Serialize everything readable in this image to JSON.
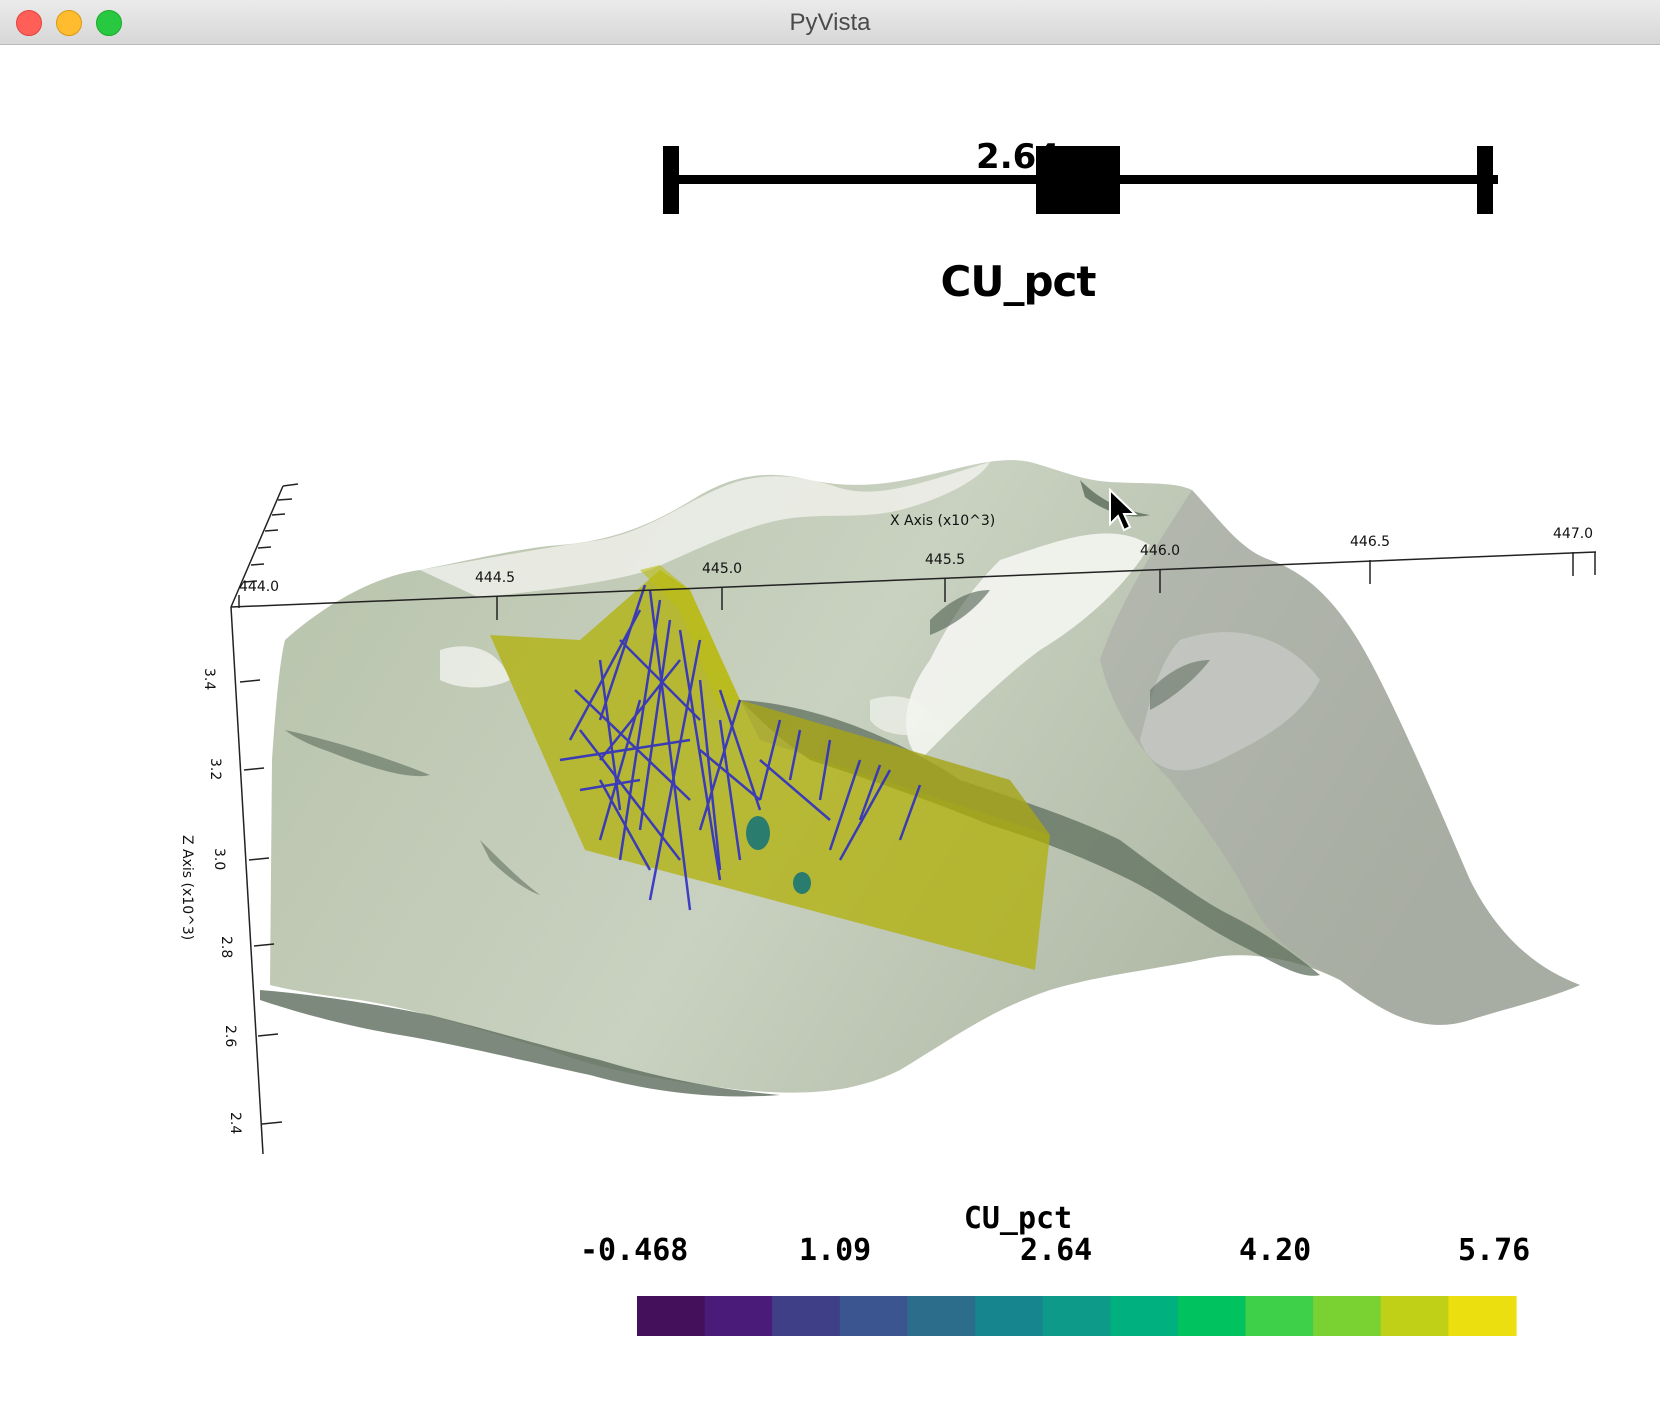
{
  "window": {
    "title": "PyVista"
  },
  "slider": {
    "value": "2.64",
    "title": "CU_pct",
    "value_fraction": 0.5
  },
  "x_axis": {
    "title": "X Axis (x10^3)",
    "ticks": [
      "444.0",
      "444.5",
      "445.0",
      "445.5",
      "446.0",
      "446.5",
      "447.0"
    ]
  },
  "z_axis": {
    "title": "Z Axis (x10^3)",
    "ticks": [
      "3.4",
      "3.2",
      "3.0",
      "2.8",
      "2.6",
      "2.4"
    ]
  },
  "colorbar": {
    "title": "CU_pct",
    "labels": [
      "-0.468",
      "1.09",
      "2.64",
      "4.20",
      "5.76"
    ],
    "colors": [
      "#44105c",
      "#4a1b78",
      "#3f3f88",
      "#3b5590",
      "#2c6d8c",
      "#17858e",
      "#0e9a89",
      "#00b07e",
      "#00c25f",
      "#3fd04a",
      "#7ad232",
      "#c0d016",
      "#ebdf10"
    ]
  },
  "scene_colors": {
    "terrain": "#a8b8a0",
    "terrain_shadow": "#566a58",
    "snow": "#f2f4f0",
    "sheet": "#b4b400",
    "holes": "#2e2fc4",
    "blob": "#2a7c6e"
  }
}
